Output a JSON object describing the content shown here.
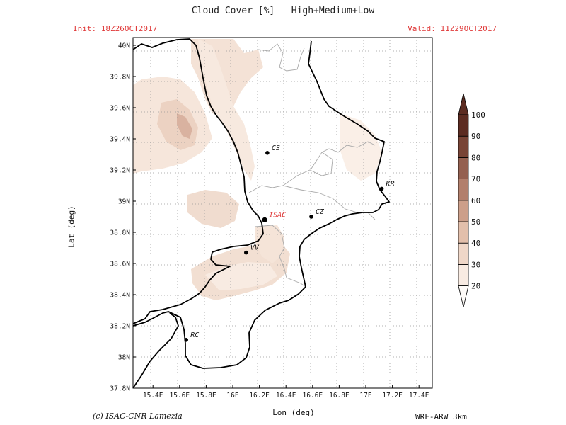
{
  "header": {
    "title": "Cloud Cover [%] — High+Medium+Low",
    "init": "Init: 18Z26OCT2017",
    "valid": "Valid: 11Z29OCT2017"
  },
  "map": {
    "xlabel": "Lon (deg)",
    "ylabel": "Lat (deg)",
    "lon_range": [
      15.25,
      17.5
    ],
    "lat_range": [
      37.8,
      40.05
    ],
    "lon_ticks": [
      "15.4E",
      "15.6E",
      "15.8E",
      "16E",
      "16.2E",
      "16.4E",
      "16.6E",
      "16.8E",
      "17E",
      "17.2E",
      "17.4E"
    ],
    "lat_ticks": [
      "40N",
      "39.8N",
      "39.6N",
      "39.4N",
      "39.2N",
      "39N",
      "38.8N",
      "38.6N",
      "38.4N",
      "38.2N",
      "38N",
      "37.8N"
    ],
    "cities": [
      {
        "name": "CS",
        "lon": 16.26,
        "lat": 39.31,
        "highlight": false
      },
      {
        "name": "KR",
        "lon": 17.12,
        "lat": 39.08,
        "highlight": false
      },
      {
        "name": "ISAC",
        "lon": 16.24,
        "lat": 38.88,
        "highlight": true
      },
      {
        "name": "CZ",
        "lon": 16.59,
        "lat": 38.9,
        "highlight": false
      },
      {
        "name": "VV",
        "lon": 16.1,
        "lat": 38.67,
        "highlight": false
      },
      {
        "name": "RC",
        "lon": 15.65,
        "lat": 38.11,
        "highlight": false
      }
    ]
  },
  "colorbar": {
    "levels": [
      "20",
      "30",
      "40",
      "50",
      "60",
      "70",
      "80",
      "90",
      "100"
    ],
    "colors": [
      "#fefbf8",
      "#f8ebe2",
      "#efd7c8",
      "#e2bfab",
      "#cc9f8a",
      "#b27f6c",
      "#946050",
      "#784436",
      "#5c2c22"
    ]
  },
  "footer": {
    "credit": "(c) ISAC-CNR Lamezia",
    "model": "WRF-ARW 3km"
  }
}
